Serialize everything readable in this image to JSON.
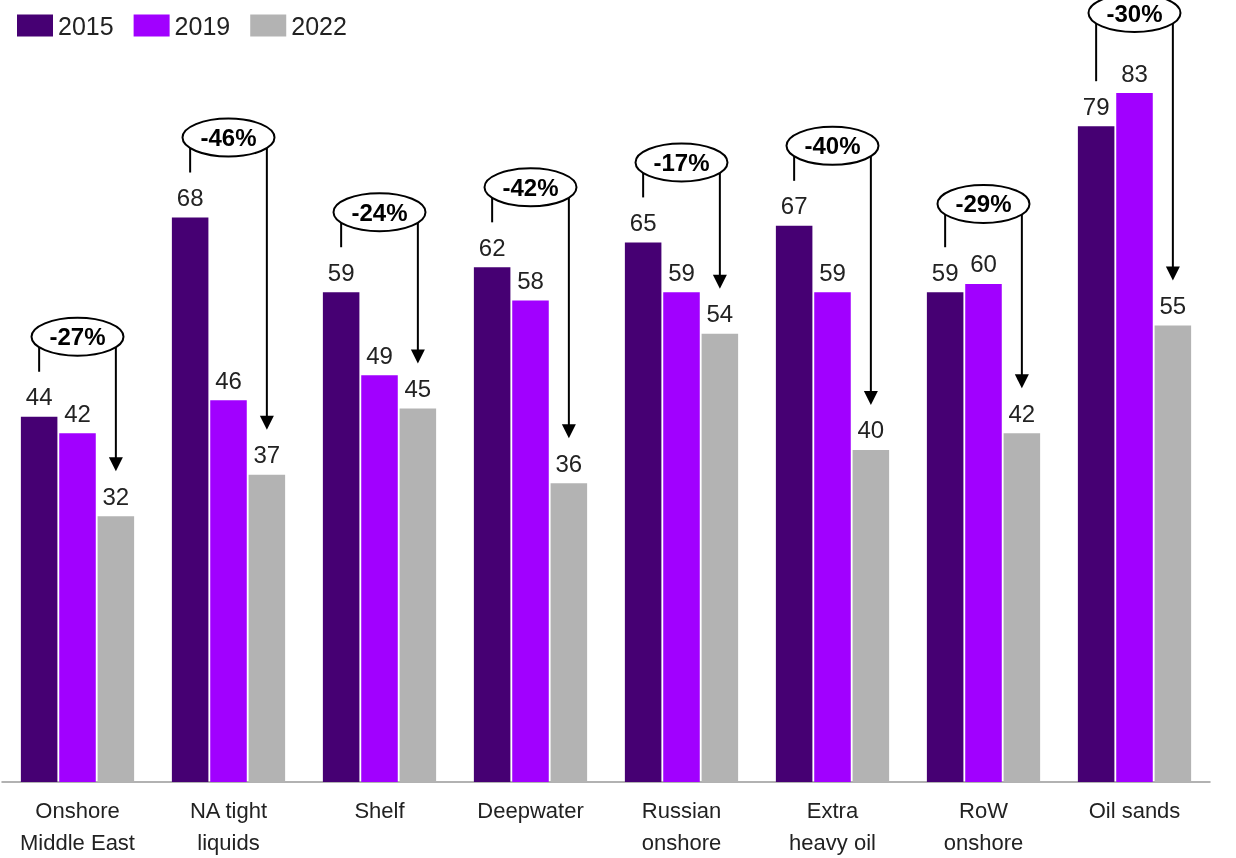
{
  "chart_data": {
    "type": "bar",
    "categories": [
      "Onshore\nMiddle East",
      "NA tight\nliquids",
      "Shelf",
      "Deepwater",
      "Russian\nonshore",
      "Extra\nheavy oil",
      "RoW\nonshore",
      "Oil sands"
    ],
    "series": [
      {
        "name": "2015",
        "color": "#460073",
        "values": [
          44,
          68,
          59,
          62,
          65,
          67,
          59,
          79
        ]
      },
      {
        "name": "2019",
        "color": "#a100ff",
        "values": [
          42,
          46,
          49,
          58,
          59,
          59,
          60,
          83
        ]
      },
      {
        "name": "2022",
        "color": "#b3b3b3",
        "values": [
          32,
          37,
          45,
          36,
          54,
          40,
          42,
          55
        ]
      }
    ],
    "data_labels": true,
    "legend": "top left",
    "grid": false,
    "annotations": [
      "-27%",
      "-46%",
      "-24%",
      "-42%",
      "-17%",
      "-40%",
      "-29%",
      "-30%"
    ]
  }
}
